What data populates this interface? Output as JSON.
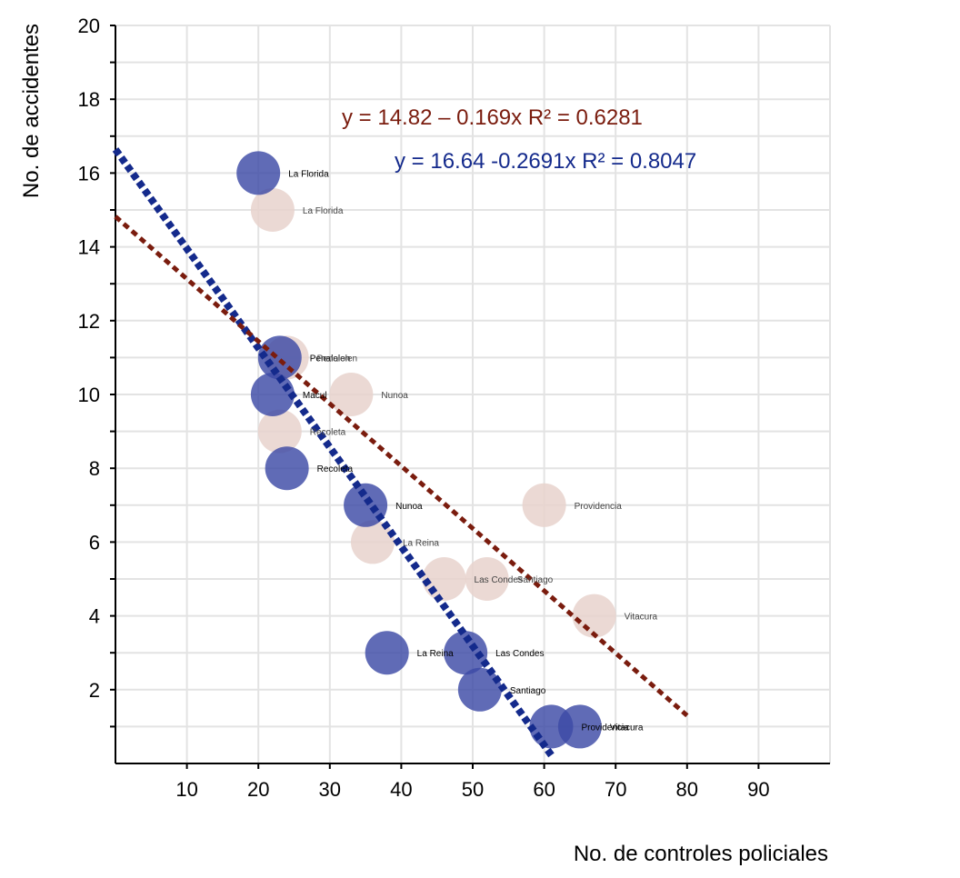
{
  "chart_data": {
    "type": "scatter",
    "title": "",
    "xlabel": "No. de controles policiales",
    "ylabel": "No. de accidentes",
    "xlim": [
      0,
      100
    ],
    "ylim": [
      0,
      20
    ],
    "x_ticks": [
      10,
      20,
      30,
      40,
      50,
      60,
      70,
      80,
      90
    ],
    "y_ticks": [
      2,
      4,
      6,
      8,
      10,
      12,
      14,
      16,
      18,
      20
    ],
    "grid": true,
    "series": [
      {
        "color": "#3d4aa6",
        "points": [
          {
            "label": "La Florida",
            "x": 20,
            "y": 16
          },
          {
            "label": "Penalolen",
            "x": 23,
            "y": 11
          },
          {
            "label": "Macul",
            "x": 22,
            "y": 10
          },
          {
            "label": "Recoleta",
            "x": 24,
            "y": 8
          },
          {
            "label": "Nunoa",
            "x": 35,
            "y": 7
          },
          {
            "label": "La Reina",
            "x": 38,
            "y": 3
          },
          {
            "label": "Las Condes",
            "x": 49,
            "y": 3
          },
          {
            "label": "Santiago",
            "x": 51,
            "y": 2
          },
          {
            "label": "Providencia",
            "x": 61,
            "y": 1
          },
          {
            "label": "Vitacura",
            "x": 65,
            "y": 1
          }
        ],
        "trendline": {
          "equation": "y = 16.64 -0.2691x",
          "r2": "R² = 0.8047",
          "intercept": 16.64,
          "slope": -0.2691,
          "x_range": [
            0,
            61
          ],
          "color": "#142a8c"
        }
      },
      {
        "color": "#e8d2cd",
        "points": [
          {
            "label": "La Florida",
            "x": 22,
            "y": 15
          },
          {
            "label": "Penalolen",
            "x": 24,
            "y": 11
          },
          {
            "label": "Nunoa",
            "x": 33,
            "y": 10
          },
          {
            "label": "Recoleta",
            "x": 23,
            "y": 9
          },
          {
            "label": "La Reina",
            "x": 36,
            "y": 6
          },
          {
            "label": "Las Condes",
            "x": 46,
            "y": 5
          },
          {
            "label": "Santiago",
            "x": 52,
            "y": 5
          },
          {
            "label": "Providencia",
            "x": 60,
            "y": 7
          },
          {
            "label": "Vitacura",
            "x": 67,
            "y": 4
          }
        ],
        "trendline": {
          "equation": "y = 14.82 – 0.169x",
          "r2": "R² = 0.6281",
          "intercept": 14.82,
          "slope": -0.169,
          "x_range": [
            0,
            80
          ],
          "color": "#7a1c0e"
        }
      }
    ]
  }
}
